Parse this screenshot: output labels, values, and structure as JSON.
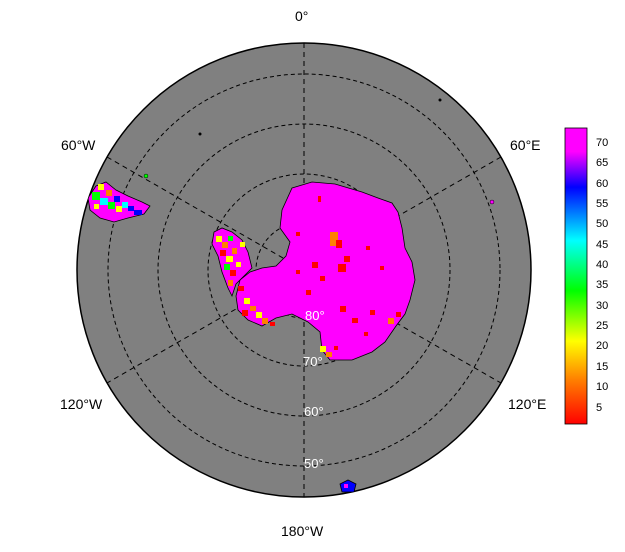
{
  "map": {
    "projection": "south-polar-stereographic",
    "background_color": "#808080",
    "land_dominant_color": "#ff00ff",
    "longitude_labels": [
      "0°",
      "60°E",
      "120°E",
      "180°W",
      "120°W",
      "60°W"
    ],
    "latitude_labels": [
      "80°",
      "70°",
      "60°",
      "50°"
    ]
  },
  "colorbar": {
    "min": 0,
    "max": 75,
    "ticks": [
      "70",
      "65",
      "60",
      "55",
      "50",
      "45",
      "40",
      "35",
      "30",
      "25",
      "20",
      "15",
      "10",
      "5"
    ],
    "colors": [
      "#ff0000",
      "#ff8000",
      "#ffff00",
      "#00ff00",
      "#00ffff",
      "#0000ff",
      "#ff00ff"
    ]
  }
}
